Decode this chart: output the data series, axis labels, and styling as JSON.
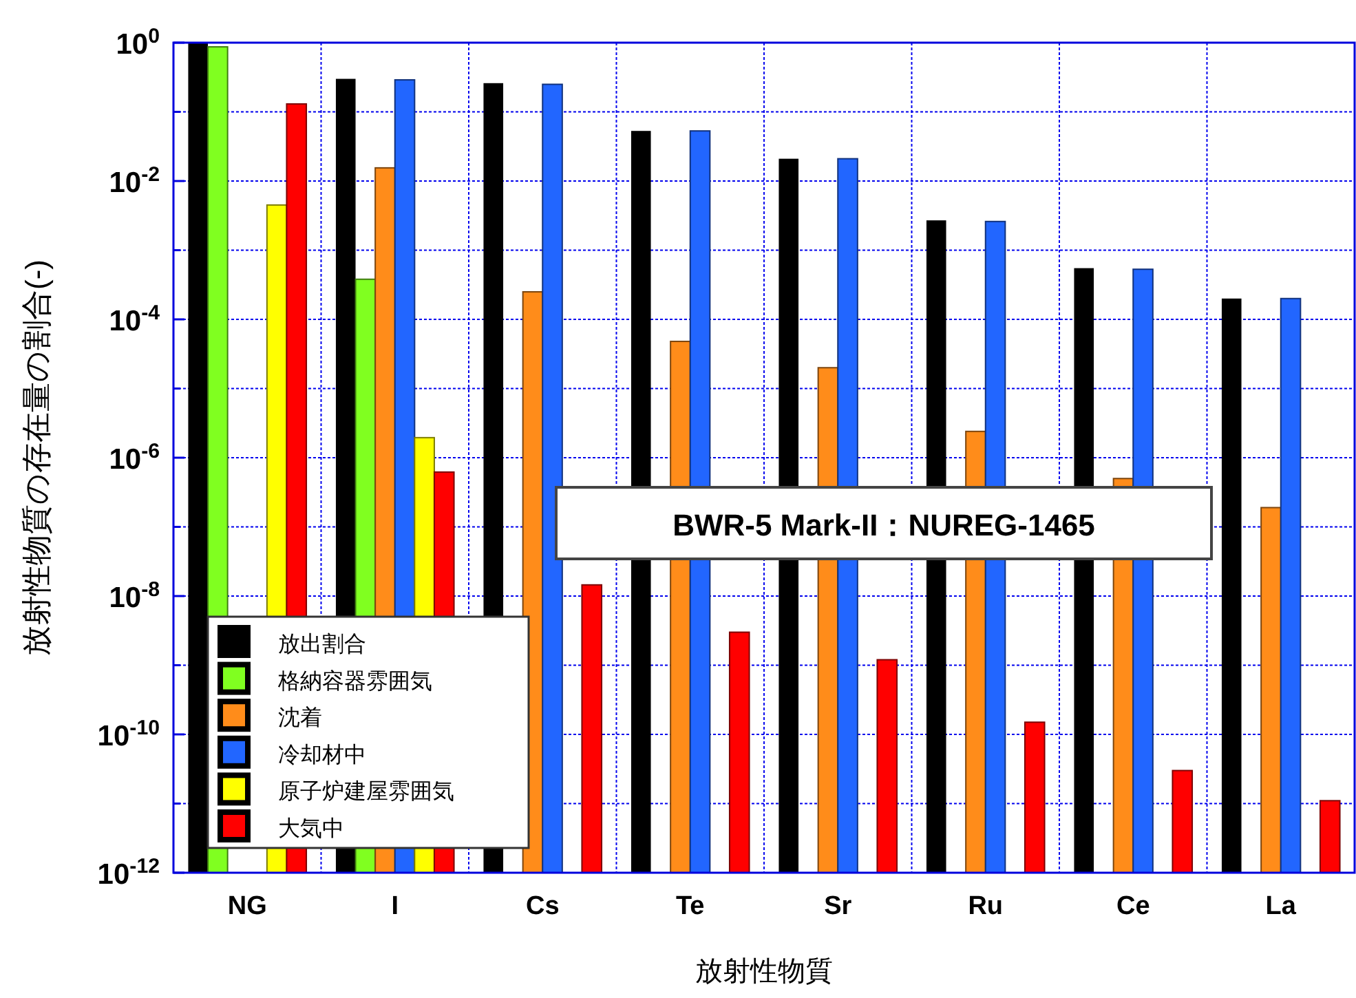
{
  "chart_data": {
    "type": "bar",
    "xlabel": "放射性物質",
    "ylabel": "放射性物質の存在量の割合(-)",
    "categories": [
      "NG",
      "I",
      "Cs",
      "Te",
      "Sr",
      "Ru",
      "Ce",
      "La"
    ],
    "series": [
      {
        "name": "放出割合",
        "color": "#000000",
        "values": [
          1,
          0.3,
          0.26,
          0.053,
          0.021,
          0.0027,
          0.00055,
          0.0002
        ]
      },
      {
        "name": "格納容器雰囲気",
        "color": "#80ff20",
        "values": [
          0.87,
          0.00038,
          null,
          null,
          null,
          null,
          null,
          null
        ]
      },
      {
        "name": "沈着",
        "color": "#ff8c1a",
        "values": [
          null,
          0.0155,
          0.00025,
          4.8e-05,
          2e-05,
          2.4e-06,
          5e-07,
          1.9e-07
        ]
      },
      {
        "name": "冷却材中",
        "color": "#2266ff",
        "values": [
          null,
          0.29,
          0.25,
          0.053,
          0.021,
          0.0026,
          0.00053,
          0.0002
        ]
      },
      {
        "name": "原子炉建屋雰囲気",
        "color": "#ffff00",
        "values": [
          0.0045,
          1.95e-06,
          null,
          null,
          null,
          null,
          null,
          null
        ]
      },
      {
        "name": "大気中",
        "color": "#ff0000",
        "values": [
          0.13,
          6.2e-07,
          1.45e-08,
          3e-09,
          1.2e-09,
          1.5e-10,
          3e-11,
          1.1e-11
        ]
      }
    ],
    "log": true,
    "ylim": [
      1e-12,
      1
    ],
    "yticks": [
      {
        "value": 1e-12,
        "label": "10$^{-12}$"
      },
      {
        "value": 1e-11,
        "label": null
      },
      {
        "value": 1e-10,
        "label": "10$^{-10}$"
      },
      {
        "value": 1e-09,
        "label": null
      },
      {
        "value": 1e-08,
        "label": "10$^{-8}$"
      },
      {
        "value": 1e-07,
        "label": null
      },
      {
        "value": 1e-06,
        "label": "10$^{-6}$"
      },
      {
        "value": 1e-05,
        "label": null
      },
      {
        "value": 0.0001,
        "label": "10$^{-4}$"
      },
      {
        "value": 0.001,
        "label": null
      },
      {
        "value": 0.01,
        "label": "10$^{-2}$"
      },
      {
        "value": 0.1,
        "label": null
      },
      {
        "value": 1,
        "label": "10$^{0}$"
      }
    ],
    "grid": true,
    "legend": "bottom left",
    "annotations": [
      "BWR-5 Mark-II：NUREG-1465"
    ]
  }
}
